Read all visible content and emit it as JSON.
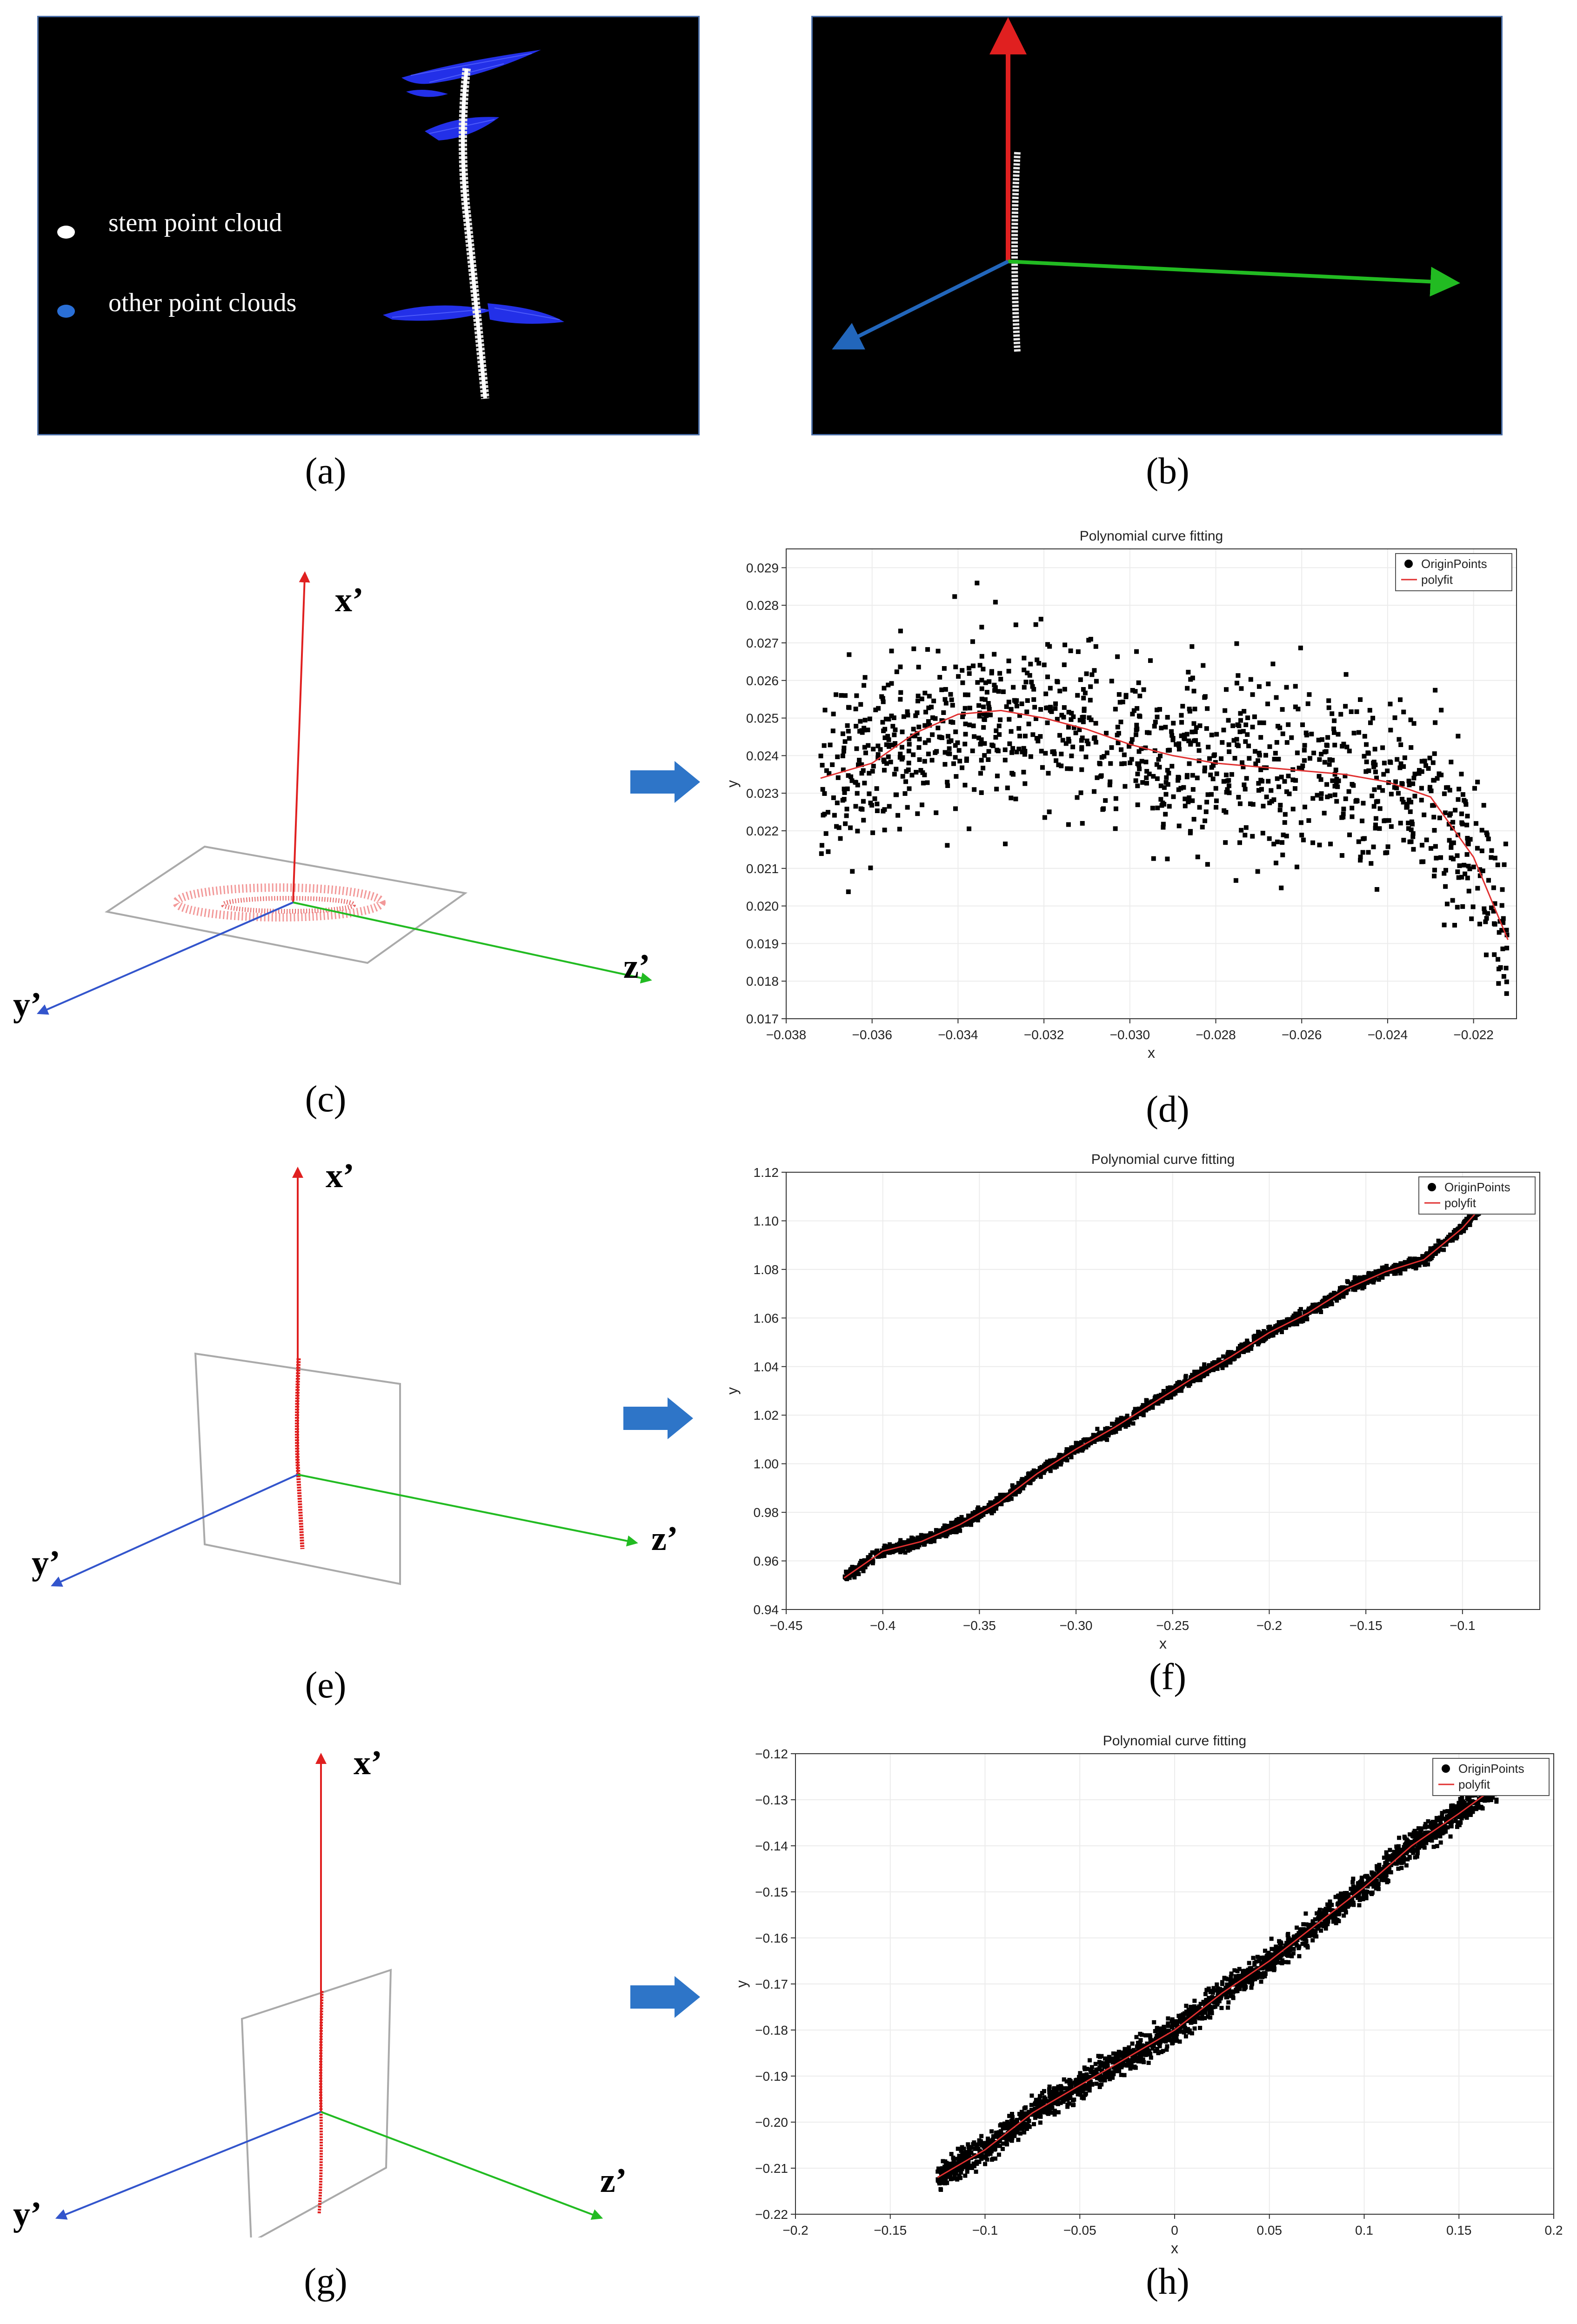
{
  "panel_a": {
    "caption": "(a)",
    "legend": [
      {
        "label": "stem point cloud",
        "color": "#ffffff"
      },
      {
        "label": "other point clouds",
        "color": "#2a6fd6"
      }
    ]
  },
  "panel_b": {
    "caption": "(b)"
  },
  "panel_c": {
    "caption": "(c)",
    "x_label": "x’",
    "y_label": "y’",
    "z_label": "z’"
  },
  "panel_e": {
    "caption": "(e)",
    "x_label": "x’",
    "y_label": "y’",
    "z_label": "z’"
  },
  "panel_g": {
    "caption": "(g)",
    "x_label": "x’",
    "y_label": "y’",
    "z_label": "z’"
  },
  "arrows": {
    "color": "#2e75c8",
    "icon": "right-arrow-icon"
  },
  "colors": {
    "x_axis": "#e02020",
    "y_axis": "#3355cc",
    "z_axis": "#22bb22",
    "fit": "#e03030",
    "points": "#000000"
  },
  "chart_data": [
    {
      "id": "d",
      "caption": "(d)",
      "type": "scatter",
      "title": "Polynomial curve fitting",
      "xlabel": "x",
      "ylabel": "y",
      "xlim": [
        -0.038,
        -0.021
      ],
      "ylim": [
        0.017,
        0.0295
      ],
      "xticks": [
        -0.038,
        -0.036,
        -0.034,
        -0.032,
        -0.03,
        -0.028,
        -0.026,
        -0.024,
        -0.022
      ],
      "xtick_labels": [
        "−0.038",
        "−0.036",
        "−0.034",
        "−0.032",
        "−0.030",
        "−0.028",
        "−0.026",
        "−0.024",
        "−0.022"
      ],
      "yticks": [
        0.017,
        0.018,
        0.019,
        0.02,
        0.021,
        0.022,
        0.023,
        0.024,
        0.025,
        0.026,
        0.027,
        0.028,
        0.029
      ],
      "ytick_labels": [
        "0.017",
        "0.018",
        "0.019",
        "0.020",
        "0.021",
        "0.022",
        "0.023",
        "0.024",
        "0.025",
        "0.026",
        "0.027",
        "0.028",
        "0.029"
      ],
      "legend": [
        "OriginPoints",
        "polyfit"
      ],
      "legend_position": "top-right",
      "series": [
        {
          "name": "OriginPoints",
          "kind": "scatter",
          "approx_count": 1200,
          "x_range": [
            -0.0372,
            -0.0212
          ],
          "y_center": [
            0.0235,
            0.025,
            0.024,
            0.023,
            0.0228
          ],
          "y_spread": 0.0025
        },
        {
          "name": "polyfit",
          "kind": "line",
          "x": [
            -0.0372,
            -0.036,
            -0.035,
            -0.034,
            -0.033,
            -0.032,
            -0.031,
            -0.03,
            -0.029,
            -0.028,
            -0.027,
            -0.026,
            -0.025,
            -0.024,
            -0.023,
            -0.022,
            -0.0212
          ],
          "y": [
            0.0234,
            0.0238,
            0.0246,
            0.0251,
            0.0252,
            0.025,
            0.0247,
            0.0243,
            0.024,
            0.0238,
            0.0237,
            0.0236,
            0.0235,
            0.0233,
            0.0229,
            0.0213,
            0.0191
          ]
        }
      ]
    },
    {
      "id": "f",
      "caption": "(f)",
      "type": "scatter",
      "title": "Polynomial curve fitting",
      "xlabel": "x",
      "ylabel": "y",
      "xlim": [
        -0.45,
        -0.06
      ],
      "ylim": [
        0.94,
        1.12
      ],
      "xticks": [
        -0.45,
        -0.4,
        -0.35,
        -0.3,
        -0.25,
        -0.2,
        -0.15,
        -0.1
      ],
      "xtick_labels": [
        "−0.45",
        "−0.4",
        "−0.35",
        "−0.30",
        "−0.25",
        "−0.2",
        "−0.15",
        "−0.1"
      ],
      "yticks": [
        0.94,
        0.96,
        0.98,
        1.0,
        1.02,
        1.04,
        1.06,
        1.08,
        1.1,
        1.12
      ],
      "ytick_labels": [
        "0.94",
        "0.96",
        "0.98",
        "1.00",
        "1.02",
        "1.04",
        "1.06",
        "1.08",
        "1.10",
        "1.12"
      ],
      "legend": [
        "OriginPoints",
        "polyfit"
      ],
      "legend_position": "top-right",
      "series": [
        {
          "name": "OriginPoints",
          "kind": "scatter",
          "approx_count": 2000,
          "x_range": [
            -0.42,
            -0.09
          ],
          "y_spread": 0.004
        },
        {
          "name": "polyfit",
          "kind": "line",
          "x": [
            -0.42,
            -0.4,
            -0.38,
            -0.36,
            -0.34,
            -0.32,
            -0.3,
            -0.28,
            -0.26,
            -0.24,
            -0.22,
            -0.2,
            -0.18,
            -0.16,
            -0.14,
            -0.12,
            -0.1,
            -0.09
          ],
          "y": [
            0.953,
            0.964,
            0.968,
            0.975,
            0.984,
            0.996,
            1.006,
            1.015,
            1.025,
            1.035,
            1.044,
            1.054,
            1.062,
            1.072,
            1.079,
            1.084,
            1.097,
            1.106
          ]
        }
      ]
    },
    {
      "id": "h",
      "caption": "(h)",
      "type": "scatter",
      "title": "Polynomial curve fitting",
      "xlabel": "x",
      "ylabel": "y",
      "xlim": [
        -0.2,
        0.2
      ],
      "ylim": [
        -0.22,
        -0.12
      ],
      "xticks": [
        -0.2,
        -0.15,
        -0.1,
        -0.05,
        0,
        0.05,
        0.1,
        0.15,
        0.2
      ],
      "xtick_labels": [
        "−0.2",
        "−0.15",
        "−0.1",
        "−0.05",
        "0",
        "0.05",
        "0.1",
        "0.15",
        "0.2"
      ],
      "yticks": [
        -0.22,
        -0.21,
        -0.2,
        -0.19,
        -0.18,
        -0.17,
        -0.16,
        -0.15,
        -0.14,
        -0.13,
        -0.12
      ],
      "ytick_labels": [
        "−0.22",
        "−0.21",
        "−0.20",
        "−0.19",
        "−0.18",
        "−0.17",
        "−0.16",
        "−0.15",
        "−0.14",
        "−0.13",
        "−0.12"
      ],
      "legend": [
        "OriginPoints",
        "polyfit"
      ],
      "legend_position": "top-right",
      "series": [
        {
          "name": "OriginPoints",
          "kind": "scatter",
          "approx_count": 2200,
          "x_range": [
            -0.125,
            0.17
          ],
          "y_spread": 0.005
        },
        {
          "name": "polyfit",
          "kind": "line",
          "x": [
            -0.125,
            -0.1,
            -0.075,
            -0.05,
            -0.025,
            0,
            0.025,
            0.05,
            0.075,
            0.1,
            0.125,
            0.15,
            0.17
          ],
          "y": [
            -0.212,
            -0.206,
            -0.198,
            -0.192,
            -0.186,
            -0.18,
            -0.172,
            -0.165,
            -0.157,
            -0.149,
            -0.14,
            -0.133,
            -0.127
          ]
        }
      ]
    }
  ]
}
